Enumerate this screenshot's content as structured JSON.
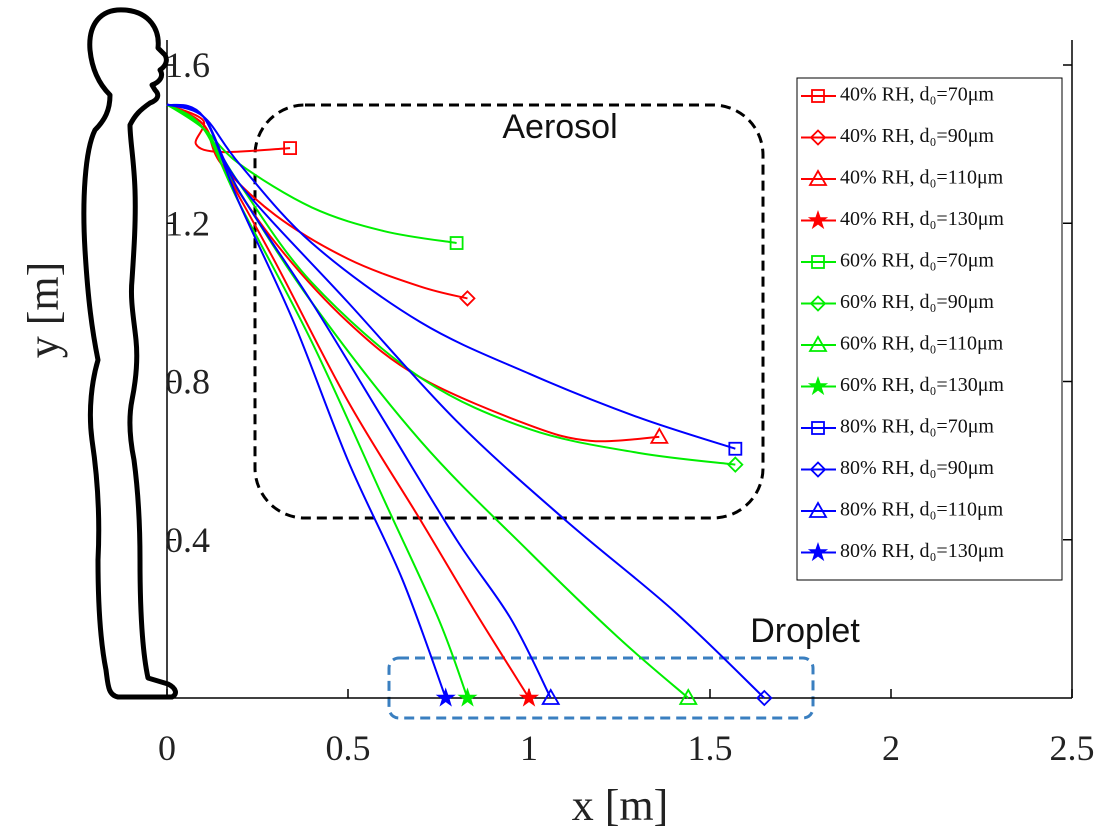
{
  "chart_data": {
    "type": "line",
    "xlabel": "x [m]",
    "ylabel": "y [m]",
    "xlim": [
      0,
      2.5
    ],
    "ylim": [
      0,
      1.6
    ],
    "xticks": [
      0,
      0.5,
      1,
      1.5,
      2,
      2.5
    ],
    "yticks": [
      0.4,
      0.8,
      1.2,
      1.6
    ],
    "annotations": [
      "Aerosol",
      "Droplet"
    ],
    "series": [
      {
        "name": "40% RH, d₀=70μm",
        "color": "#ff0000",
        "marker": "square",
        "x": [
          0,
          0.1,
          0.08,
          0.15,
          0.34
        ],
        "y": [
          1.5,
          1.46,
          1.4,
          1.38,
          1.39
        ]
      },
      {
        "name": "40% RH, d₀=90μm",
        "color": "#ff0000",
        "marker": "diamond",
        "x": [
          0,
          0.1,
          0.15,
          0.3,
          0.5,
          0.7,
          0.83
        ],
        "y": [
          1.5,
          1.45,
          1.35,
          1.22,
          1.11,
          1.04,
          1.01
        ]
      },
      {
        "name": "40% RH, d₀=110μm",
        "color": "#ff0000",
        "marker": "triangle",
        "x": [
          0,
          0.1,
          0.15,
          0.3,
          0.5,
          0.7,
          1.0,
          1.17,
          1.36
        ],
        "y": [
          1.5,
          1.45,
          1.35,
          1.15,
          0.95,
          0.81,
          0.69,
          0.65,
          0.66
        ]
      },
      {
        "name": "40% RH, d₀=130μm",
        "color": "#ff0000",
        "marker": "star",
        "x": [
          0,
          0.1,
          0.15,
          0.3,
          0.5,
          0.7,
          0.85,
          1.0
        ],
        "y": [
          1.5,
          1.45,
          1.35,
          1.1,
          0.75,
          0.45,
          0.22,
          0
        ]
      },
      {
        "name": "60% RH, d₀=70μm",
        "color": "#00ee00",
        "marker": "square",
        "x": [
          0,
          0.1,
          0.2,
          0.4,
          0.6,
          0.8
        ],
        "y": [
          1.5,
          1.44,
          1.35,
          1.24,
          1.18,
          1.15
        ]
      },
      {
        "name": "60% RH, d₀=90μm",
        "color": "#00ee00",
        "marker": "diamond",
        "x": [
          0,
          0.1,
          0.2,
          0.4,
          0.7,
          1.0,
          1.3,
          1.57
        ],
        "y": [
          1.5,
          1.44,
          1.3,
          1.05,
          0.81,
          0.68,
          0.62,
          0.59
        ]
      },
      {
        "name": "60% RH, d₀=110μm",
        "color": "#00ee00",
        "marker": "triangle",
        "x": [
          0,
          0.1,
          0.2,
          0.4,
          0.7,
          1.0,
          1.25,
          1.44
        ],
        "y": [
          1.5,
          1.44,
          1.28,
          1.0,
          0.65,
          0.37,
          0.15,
          0
        ]
      },
      {
        "name": "60% RH, d₀=130μm",
        "color": "#00ee00",
        "marker": "star",
        "x": [
          0,
          0.1,
          0.2,
          0.4,
          0.6,
          0.75,
          0.83
        ],
        "y": [
          1.5,
          1.44,
          1.25,
          0.9,
          0.5,
          0.2,
          0
        ]
      },
      {
        "name": "80% RH, d₀=70μm",
        "color": "#0000ff",
        "marker": "square",
        "x": [
          0,
          0.1,
          0.2,
          0.4,
          0.7,
          1.0,
          1.3,
          1.57
        ],
        "y": [
          1.5,
          1.47,
          1.35,
          1.15,
          0.95,
          0.82,
          0.71,
          0.63
        ]
      },
      {
        "name": "80% RH, d₀=90μm",
        "color": "#0000ff",
        "marker": "diamond",
        "x": [
          0,
          0.1,
          0.2,
          0.5,
          0.8,
          1.1,
          1.4,
          1.65
        ],
        "y": [
          1.5,
          1.47,
          1.3,
          1.0,
          0.7,
          0.45,
          0.22,
          0
        ]
      },
      {
        "name": "80% RH, d₀=110μm",
        "color": "#0000ff",
        "marker": "triangle",
        "x": [
          0,
          0.1,
          0.2,
          0.4,
          0.6,
          0.8,
          0.95,
          1.06
        ],
        "y": [
          1.5,
          1.47,
          1.28,
          1.0,
          0.7,
          0.4,
          0.2,
          0
        ]
      },
      {
        "name": "80% RH, d₀=130μm",
        "color": "#0000ff",
        "marker": "star",
        "x": [
          0,
          0.1,
          0.2,
          0.35,
          0.5,
          0.65,
          0.77
        ],
        "y": [
          1.5,
          1.47,
          1.25,
          0.95,
          0.6,
          0.3,
          0
        ]
      }
    ]
  }
}
